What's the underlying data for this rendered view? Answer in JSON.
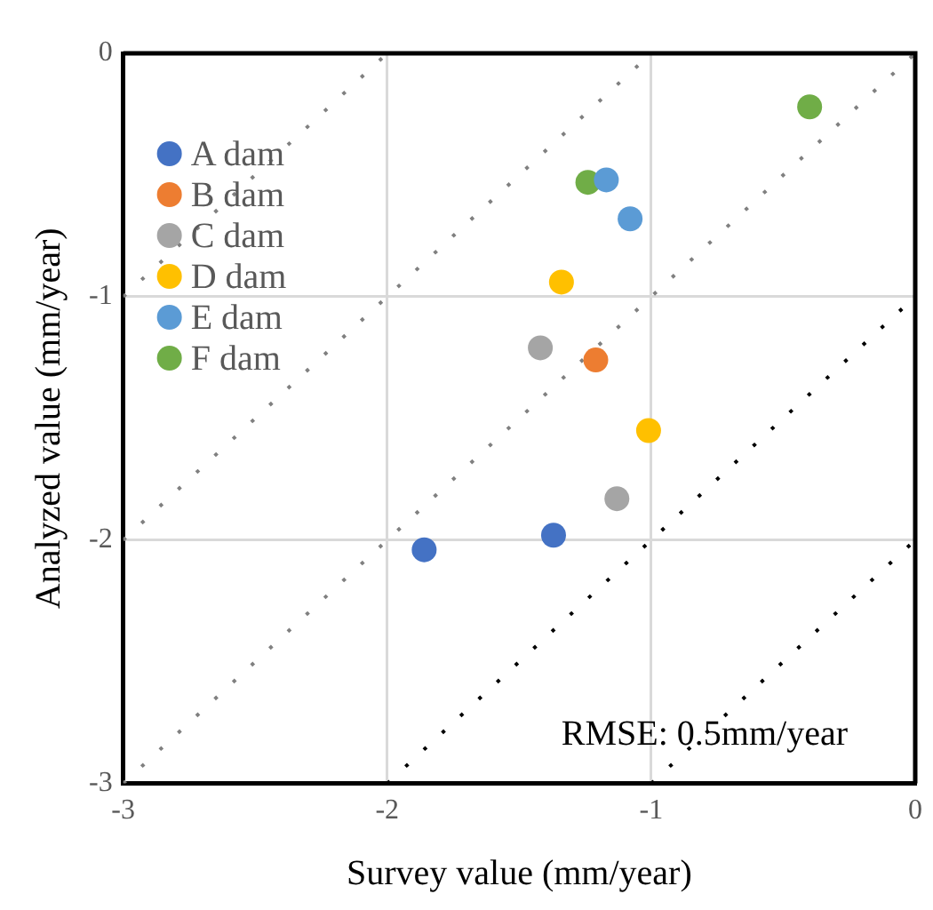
{
  "chart_data": {
    "type": "scatter",
    "xlabel": "Survey value (mm/year)",
    "ylabel": "Analyzed value (mm/year)",
    "xlim": [
      -3,
      0
    ],
    "xticks": [
      -3,
      -2,
      -1,
      0
    ],
    "ylim": [
      -3,
      0
    ],
    "yticks": [
      -3,
      -2,
      -1,
      0
    ],
    "grid": true,
    "legend": "top left",
    "marker": "circle",
    "annotations": [
      "RMSE: 0.5mm/year"
    ],
    "series": [
      {
        "name": "A dam",
        "color": "#4472c4",
        "x": [
          -1.86,
          -1.37
        ],
        "values": [
          -2.04,
          -1.98
        ]
      },
      {
        "name": "B dam",
        "color": "#ed7d31",
        "x": [
          -1.21
        ],
        "values": [
          -1.26
        ]
      },
      {
        "name": "C dam",
        "color": "#a5a5a5",
        "x": [
          -1.42,
          -1.13
        ],
        "values": [
          -1.21,
          -1.83
        ]
      },
      {
        "name": "D dam",
        "color": "#ffc000",
        "x": [
          -1.34,
          -1.01
        ],
        "values": [
          -0.94,
          -1.55
        ]
      },
      {
        "name": "E dam",
        "color": "#5b9bd5",
        "x": [
          -1.17,
          -1.08
        ],
        "values": [
          -0.52,
          -0.68
        ]
      },
      {
        "name": "F dam",
        "color": "#70ad47",
        "x": [
          -1.24,
          -0.4
        ],
        "values": [
          -0.53,
          -0.22
        ]
      },
      {
        "type": "line",
        "color": "#808080",
        "marker": "none",
        "line_style": "dashed",
        "x": [
          -3,
          0
        ],
        "values": [
          -3,
          0
        ]
      },
      {
        "type": "line",
        "color": "#808080",
        "marker": "none",
        "line_style": "dashed",
        "x": [
          -3,
          -1
        ],
        "values": [
          -2,
          0
        ]
      },
      {
        "type": "line",
        "color": "#808080",
        "marker": "none",
        "line_style": "dashed",
        "x": [
          -3,
          -2
        ],
        "values": [
          -1,
          0
        ]
      },
      {
        "type": "line",
        "color": "#000000",
        "marker": "none",
        "line_style": "dashed",
        "x": [
          -2,
          0
        ],
        "values": [
          -3,
          -1
        ]
      },
      {
        "type": "line",
        "color": "#000000",
        "marker": "none",
        "line_style": "dashed",
        "x": [
          -1,
          0
        ],
        "values": [
          -3,
          -2
        ]
      }
    ]
  }
}
